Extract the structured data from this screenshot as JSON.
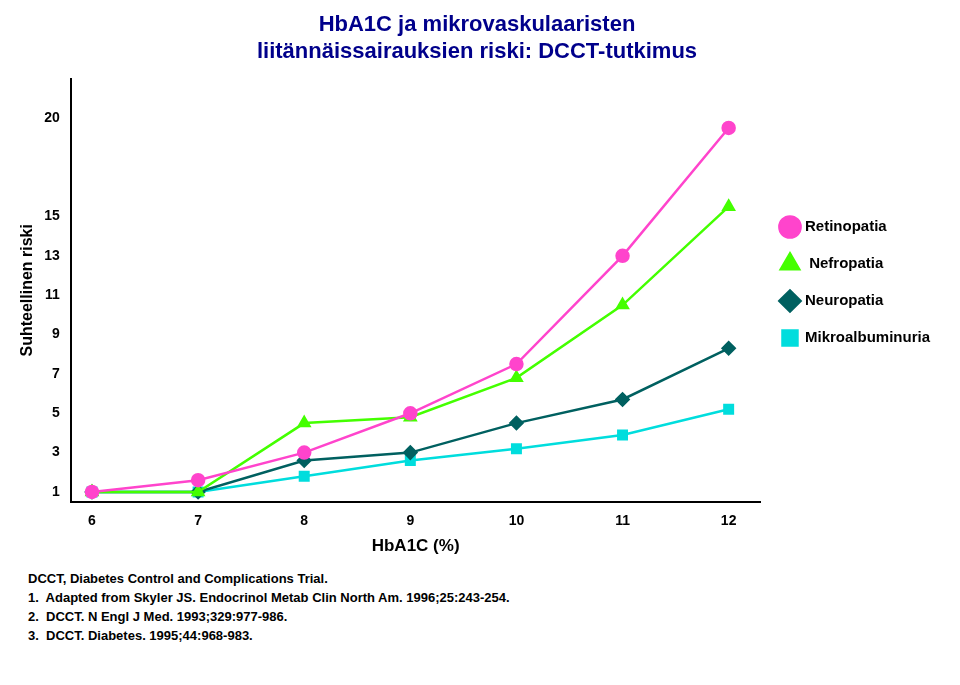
{
  "chart_data": {
    "type": "line",
    "title": [
      "HbA1C ja mikrovaskulaaristen",
      "liitännäissairauksien riski: DCCT-tutkimus"
    ],
    "title_color": "#00008B",
    "x_label": "HbA1C (%)",
    "y_label": "Suhteellinen riski",
    "x": [
      6,
      7,
      8,
      9,
      10,
      11,
      12
    ],
    "series": [
      {
        "name": "Retinopatia",
        "color": "#FF44CC",
        "marker": "circle",
        "values": [
          1.0,
          1.6,
          3.0,
          5.0,
          7.5,
          13.0,
          19.5
        ]
      },
      {
        "name": " Nefropatia",
        "color": "#44FF00",
        "marker": "triangle",
        "values": [
          1.0,
          1.0,
          4.5,
          4.8,
          6.8,
          10.5,
          15.5
        ]
      },
      {
        "name": "Neuropatia",
        "color": "#006060",
        "marker": "diamond",
        "values": [
          1.0,
          1.0,
          2.6,
          3.0,
          4.5,
          5.7,
          8.3
        ]
      },
      {
        "name": "Mikroalbuminuria",
        "color": "#00DDDD",
        "marker": "square",
        "values": [
          1.0,
          1.0,
          1.8,
          2.6,
          3.2,
          3.9,
          5.2
        ]
      }
    ],
    "xlim": [
      5.8,
      12.3
    ],
    "xticks": [
      6,
      7,
      8,
      9,
      10,
      11,
      12
    ],
    "ylim": [
      0.5,
      22
    ],
    "yticks": [
      1,
      3,
      5,
      7,
      9,
      11,
      13,
      15,
      20
    ],
    "grid": false,
    "legend": "right",
    "annotations": [
      "DCCT, Diabetes Control and Complications Trial.",
      "1.  Adapted from Skyler JS. Endocrinol Metab Clin North Am. 1996;25:243-254.",
      "2.  DCCT. N Engl J Med. 1993;329:977-986.",
      "3.  DCCT. Diabetes. 1995;44:968-983."
    ]
  }
}
